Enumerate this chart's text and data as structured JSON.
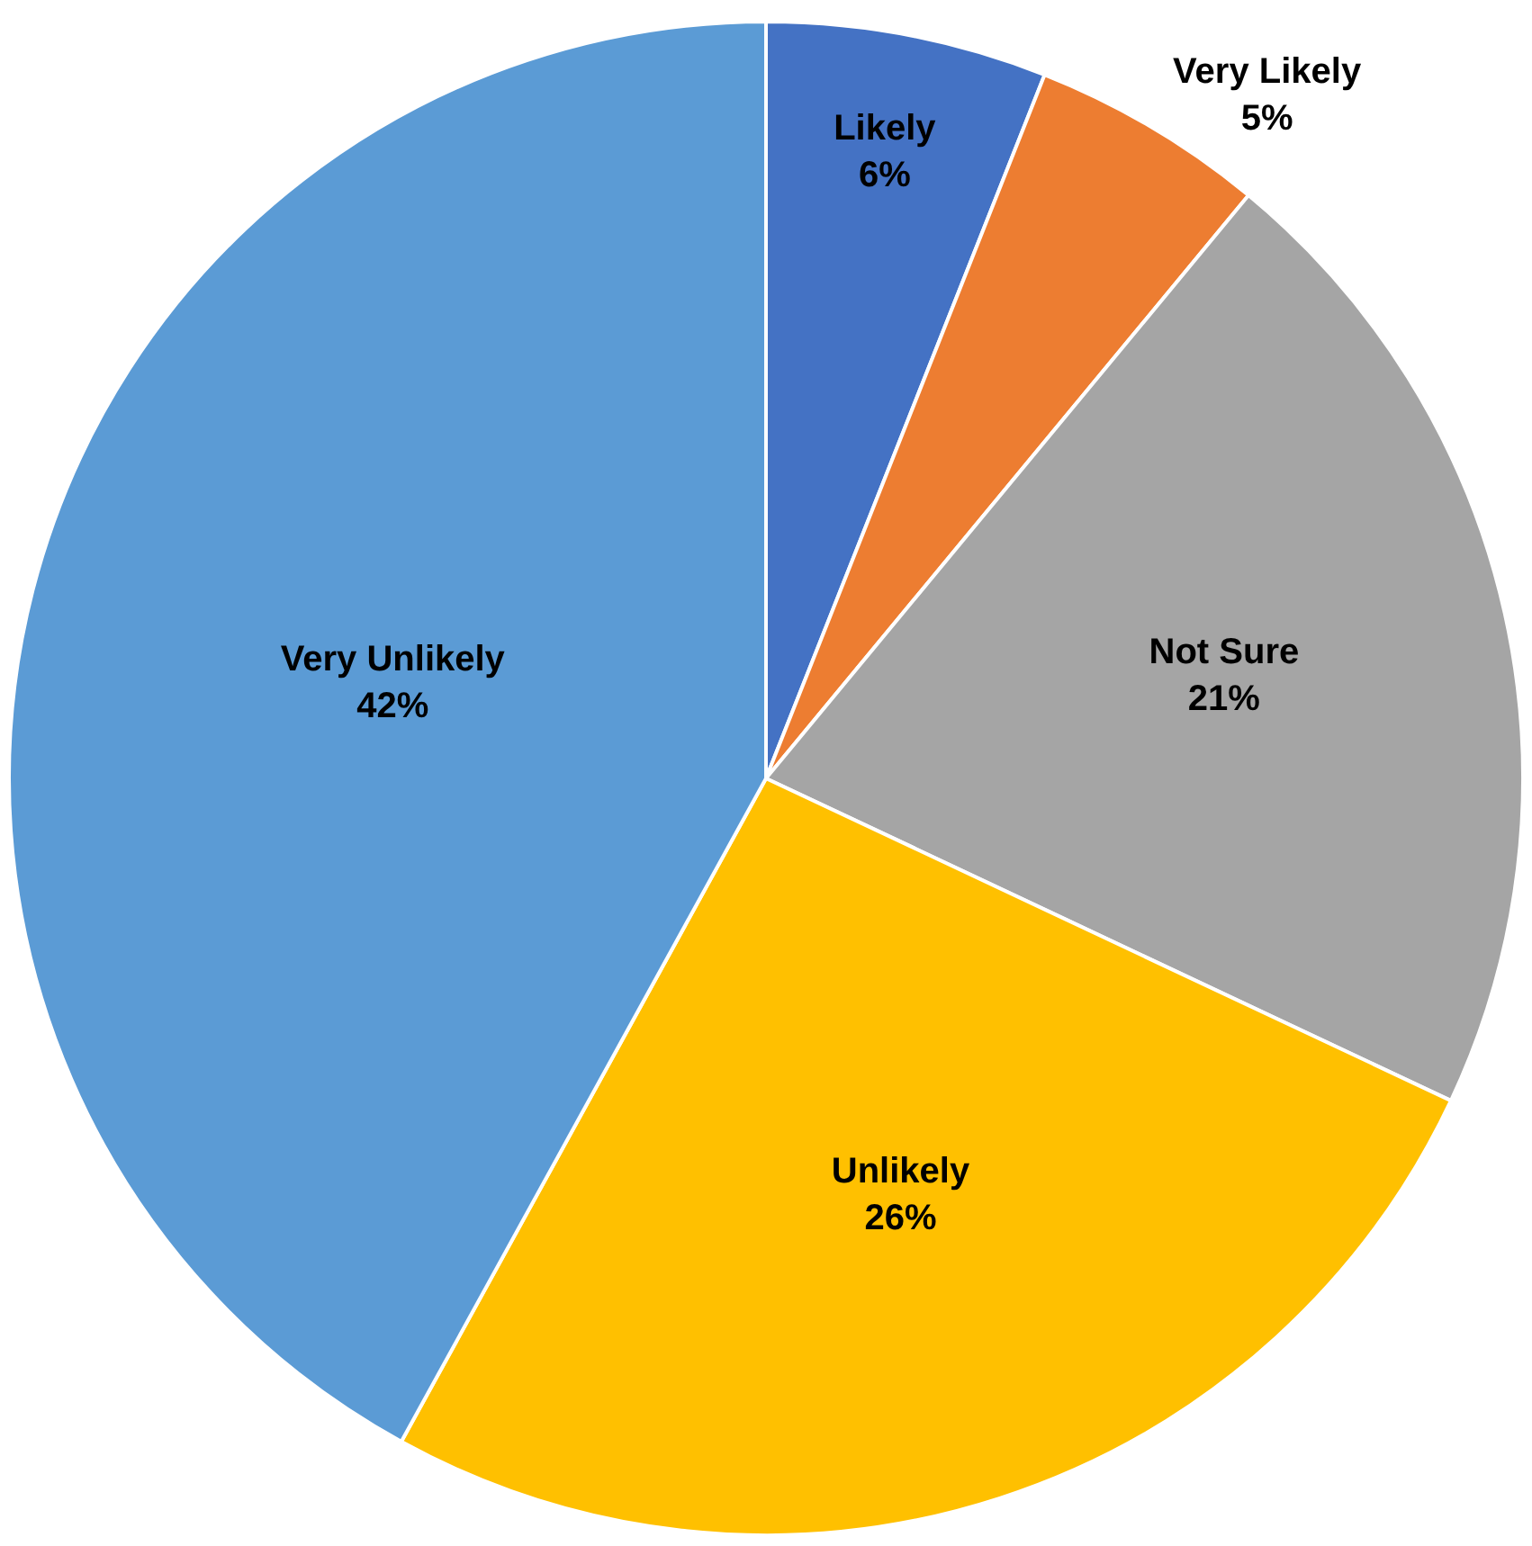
{
  "chart_data": {
    "type": "pie",
    "categories": [
      "Likely",
      "Very Likely",
      "Not Sure",
      "Unlikely",
      "Very Unlikely"
    ],
    "values": [
      6,
      5,
      21,
      26,
      42
    ],
    "value_labels": [
      "6%",
      "5%",
      "21%",
      "26%",
      "42%"
    ],
    "colors": [
      "#4472c4",
      "#ed7d31",
      "#a5a5a5",
      "#ffc000",
      "#5b9bd5"
    ],
    "legend": false
  }
}
